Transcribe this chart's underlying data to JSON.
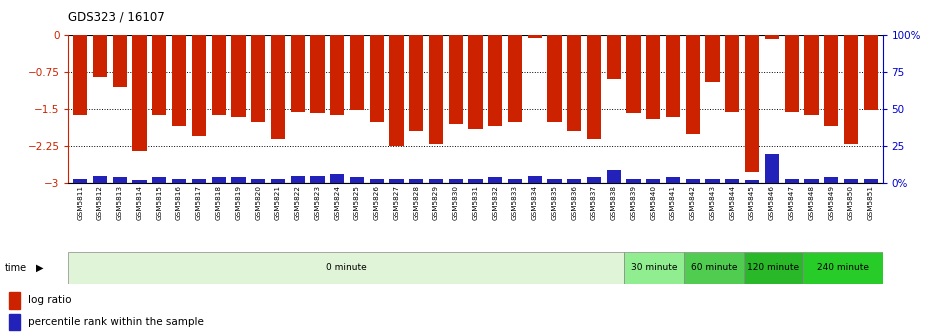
{
  "title": "GDS323 / 16107",
  "samples": [
    "GSM5811",
    "GSM5812",
    "GSM5813",
    "GSM5814",
    "GSM5815",
    "GSM5816",
    "GSM5817",
    "GSM5818",
    "GSM5819",
    "GSM5820",
    "GSM5821",
    "GSM5822",
    "GSM5823",
    "GSM5824",
    "GSM5825",
    "GSM5826",
    "GSM5827",
    "GSM5828",
    "GSM5829",
    "GSM5830",
    "GSM5831",
    "GSM5832",
    "GSM5833",
    "GSM5834",
    "GSM5835",
    "GSM5836",
    "GSM5837",
    "GSM5838",
    "GSM5839",
    "GSM5840",
    "GSM5841",
    "GSM5842",
    "GSM5843",
    "GSM5844",
    "GSM5845",
    "GSM5846",
    "GSM5847",
    "GSM5848",
    "GSM5849",
    "GSM5850",
    "GSM5851"
  ],
  "log_ratios": [
    -1.62,
    -0.85,
    -1.05,
    -2.35,
    -1.62,
    -1.85,
    -2.05,
    -1.62,
    -1.65,
    -1.75,
    -2.1,
    -1.55,
    -1.58,
    -1.62,
    -1.52,
    -1.75,
    -2.25,
    -1.95,
    -2.2,
    -1.8,
    -1.9,
    -1.85,
    -1.75,
    -0.05,
    -1.75,
    -1.95,
    -2.1,
    -0.88,
    -1.58,
    -1.7,
    -1.65,
    -2.0,
    -0.95,
    -1.55,
    -2.78,
    -0.08,
    -1.55,
    -1.62,
    -1.85,
    -2.2,
    -1.52
  ],
  "percentile_ranks": [
    3,
    5,
    4,
    2,
    4,
    3,
    3,
    4,
    4,
    3,
    3,
    5,
    5,
    6,
    4,
    3,
    3,
    3,
    3,
    3,
    3,
    4,
    3,
    5,
    3,
    3,
    4,
    9,
    3,
    3,
    4,
    3,
    3,
    3,
    2,
    20,
    3,
    3,
    4,
    3,
    3
  ],
  "time_groups": [
    {
      "label": "0 minute",
      "start": 0,
      "end": 28,
      "color": "#e0f5d8"
    },
    {
      "label": "30 minute",
      "start": 28,
      "end": 31,
      "color": "#90ee90"
    },
    {
      "label": "60 minute",
      "start": 31,
      "end": 34,
      "color": "#50cc50"
    },
    {
      "label": "120 minute",
      "start": 34,
      "end": 37,
      "color": "#28b828"
    },
    {
      "label": "240 minute",
      "start": 37,
      "end": 41,
      "color": "#28cc28"
    }
  ],
  "bar_color": "#cc2200",
  "percentile_color": "#2222bb",
  "ylim": [
    -3.0,
    0.0
  ],
  "dotted_lines": [
    -0.75,
    -1.5,
    -2.25
  ],
  "axis_label_color_left": "#cc2200",
  "axis_label_color_right": "#0000cc"
}
